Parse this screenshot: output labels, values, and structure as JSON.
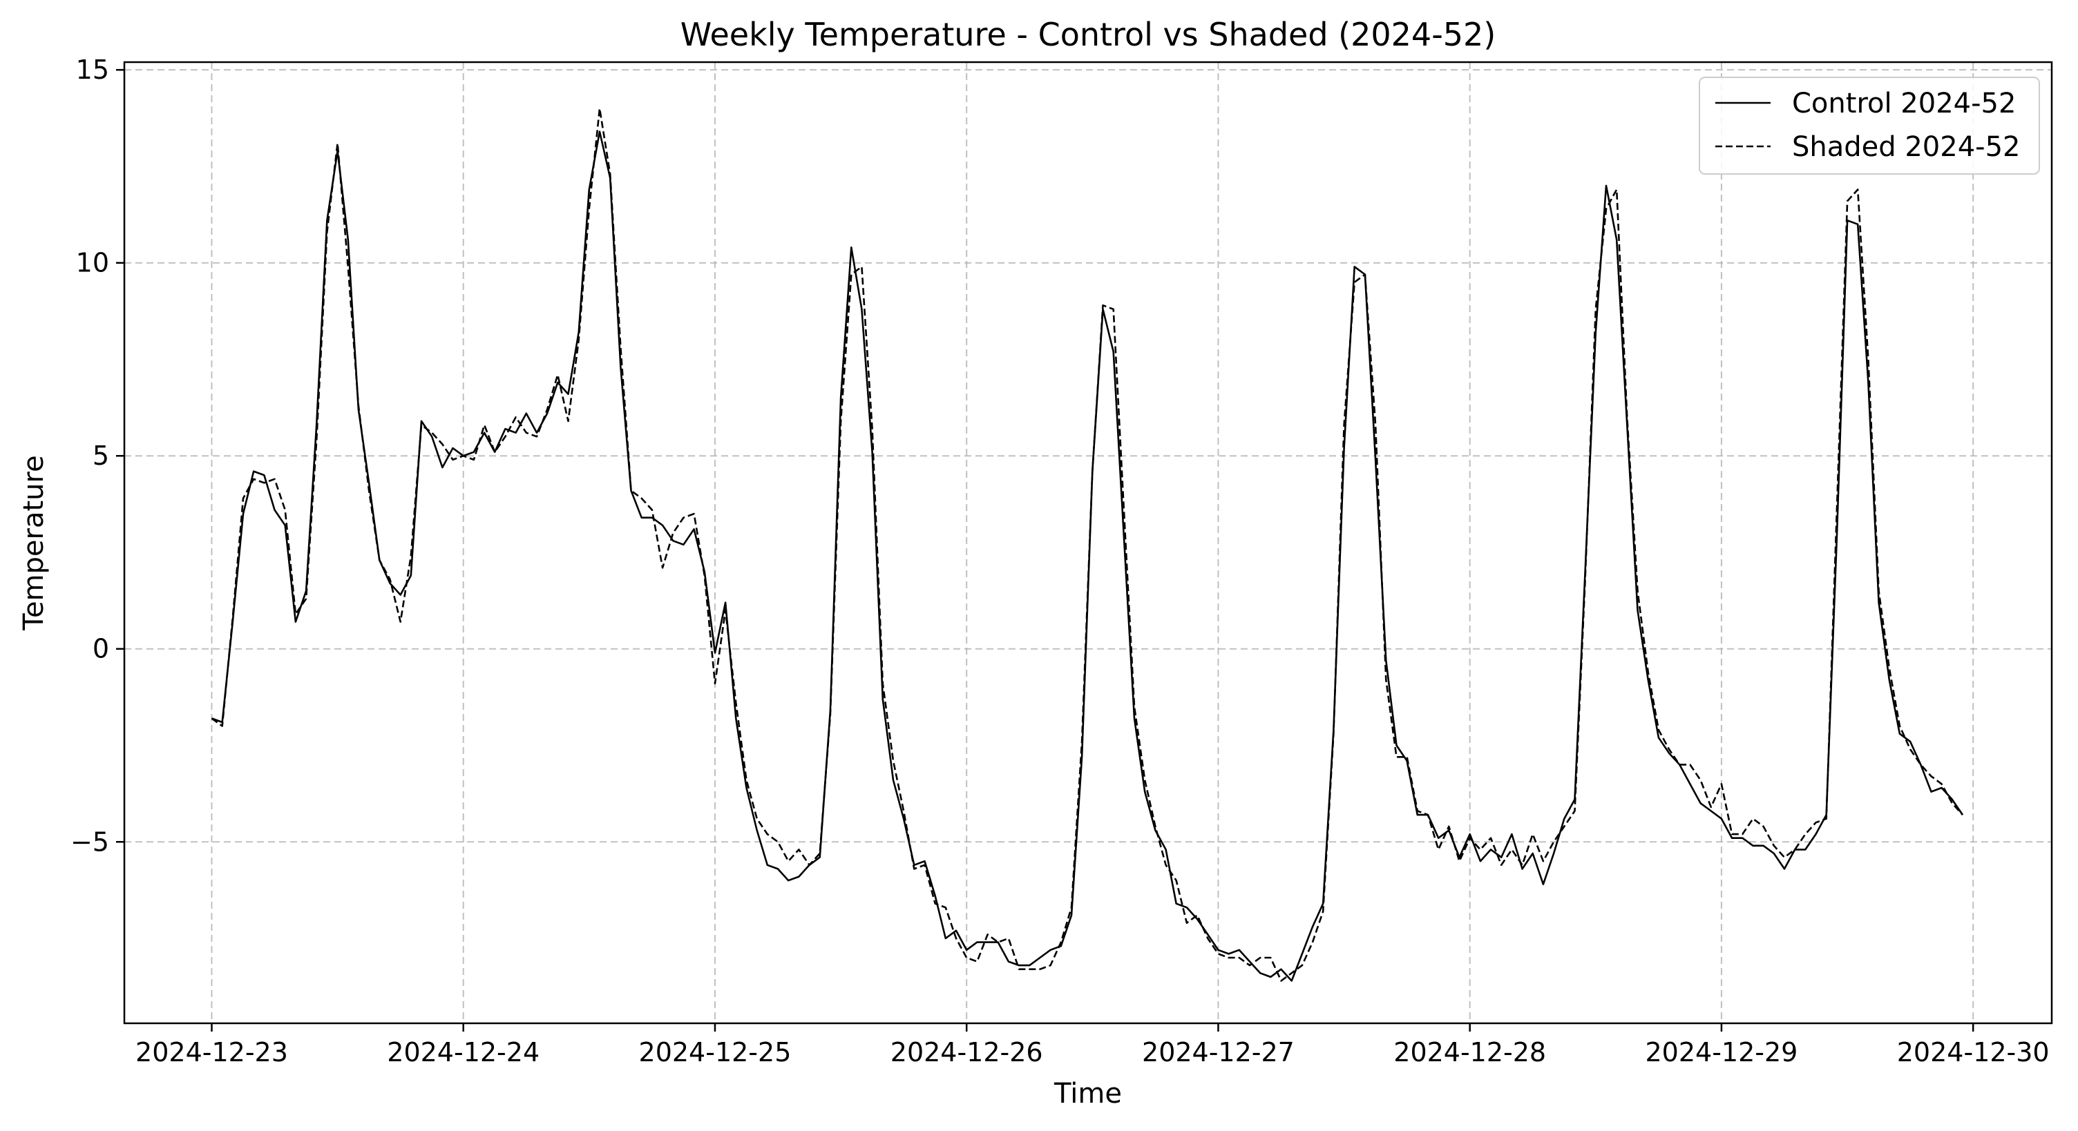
{
  "chart_data": {
    "type": "line",
    "title": "Weekly Temperature - Control vs Shaded (2024-52)",
    "xlabel": "Time",
    "ylabel": "Temperature",
    "x_start": "2024-12-23 00:00",
    "x_step_hours": 1,
    "x_ticks": [
      "2024-12-23",
      "2024-12-24",
      "2024-12-25",
      "2024-12-26",
      "2024-12-27",
      "2024-12-28",
      "2024-12-29",
      "2024-12-30"
    ],
    "y_ticks": [
      -5,
      0,
      5,
      10,
      15
    ],
    "y_tick_labels": [
      "−5",
      "0",
      "5",
      "10",
      "15"
    ],
    "xlim": [
      "2024-12-22 15:40",
      "2024-12-30 07:30"
    ],
    "ylim": [
      -9.7,
      15.2
    ],
    "grid": true,
    "grid_style": "dashed",
    "legend_position": "top-right",
    "series": [
      {
        "name": "Control 2024-52",
        "style": "solid",
        "color": "#000000",
        "values": [
          -1.8,
          -1.9,
          0.7,
          3.5,
          4.6,
          4.5,
          3.6,
          3.2,
          0.7,
          1.5,
          5.8,
          11.1,
          12.9,
          10.6,
          6.2,
          4.3,
          2.3,
          1.7,
          1.4,
          1.9,
          5.9,
          5.5,
          4.7,
          5.2,
          5.0,
          5.1,
          5.6,
          5.1,
          5.7,
          5.6,
          6.1,
          5.6,
          6.1,
          6.9,
          6.6,
          8.2,
          11.9,
          13.4,
          12.2,
          7.3,
          4.1,
          3.4,
          3.4,
          3.2,
          2.8,
          2.7,
          3.1,
          2.0,
          -0.1,
          1.2,
          -1.8,
          -3.6,
          -4.7,
          -5.6,
          -5.7,
          -6.0,
          -5.9,
          -5.6,
          -5.4,
          -1.6,
          6.5,
          10.4,
          8.8,
          5.1,
          -1.3,
          -3.4,
          -4.4,
          -5.6,
          -5.5,
          -6.4,
          -7.5,
          -7.3,
          -7.8,
          -7.6,
          -7.6,
          -7.6,
          -8.1,
          -8.2,
          -8.2,
          -8.0,
          -7.8,
          -7.7,
          -6.9,
          -2.8,
          4.6,
          8.8,
          7.7,
          2.9,
          -1.8,
          -3.7,
          -4.7,
          -5.2,
          -6.6,
          -6.7,
          -7.0,
          -7.4,
          -7.8,
          -7.9,
          -7.8,
          -8.1,
          -8.4,
          -8.5,
          -8.3,
          -8.6,
          -7.9,
          -7.2,
          -6.6,
          -2.1,
          5.2,
          9.9,
          9.7,
          4.9,
          -0.3,
          -2.5,
          -2.9,
          -4.3,
          -4.3,
          -4.9,
          -4.7,
          -5.4,
          -4.8,
          -5.5,
          -5.2,
          -5.4,
          -4.8,
          -5.7,
          -5.3,
          -6.1,
          -5.3,
          -4.4,
          -3.9,
          2.0,
          8.2,
          12.0,
          10.6,
          5.8,
          1.0,
          -0.8,
          -2.3,
          -2.7,
          -3.0,
          -3.5,
          -4.0,
          -4.2,
          -4.4,
          -4.9,
          -4.9,
          -5.1,
          -5.1,
          -5.3,
          -5.7,
          -5.2,
          -5.2,
          -4.8,
          -4.3,
          2.9,
          11.1,
          11.0,
          6.9,
          1.2,
          -0.8,
          -2.2,
          -2.4,
          -3.0,
          -3.7,
          -3.6,
          -3.9,
          -4.3
        ]
      },
      {
        "name": "Shaded 2024-52",
        "style": "dashed",
        "color": "#000000",
        "values": [
          -1.8,
          -2.0,
          0.8,
          3.9,
          4.4,
          4.3,
          4.4,
          3.6,
          0.9,
          1.3,
          5.4,
          10.8,
          13.1,
          9.9,
          6.3,
          4.1,
          2.3,
          1.8,
          0.7,
          2.4,
          5.8,
          5.6,
          5.3,
          4.9,
          5.0,
          4.9,
          5.8,
          5.1,
          5.5,
          6.0,
          5.6,
          5.5,
          6.2,
          7.1,
          5.9,
          8.0,
          11.4,
          14.0,
          12.3,
          7.8,
          4.1,
          3.9,
          3.6,
          2.1,
          3.0,
          3.4,
          3.5,
          1.9,
          -0.9,
          1.0,
          -1.4,
          -3.4,
          -4.4,
          -4.8,
          -5.0,
          -5.5,
          -5.2,
          -5.6,
          -5.3,
          -1.7,
          5.9,
          9.7,
          9.9,
          5.7,
          -0.9,
          -2.9,
          -4.2,
          -5.7,
          -5.6,
          -6.6,
          -6.7,
          -7.5,
          -8.0,
          -8.1,
          -7.4,
          -7.6,
          -7.5,
          -8.3,
          -8.3,
          -8.3,
          -8.2,
          -7.6,
          -6.7,
          -2.4,
          4.6,
          8.9,
          8.8,
          3.6,
          -1.5,
          -3.4,
          -4.6,
          -5.6,
          -6.0,
          -7.1,
          -6.9,
          -7.5,
          -7.9,
          -8.0,
          -8.0,
          -8.2,
          -8.0,
          -8.0,
          -8.6,
          -8.4,
          -8.2,
          -7.6,
          -6.8,
          -2.2,
          5.8,
          9.5,
          9.7,
          5.8,
          -0.8,
          -2.8,
          -2.8,
          -4.2,
          -4.3,
          -5.2,
          -4.6,
          -5.5,
          -4.9,
          -5.2,
          -4.9,
          -5.6,
          -5.2,
          -5.6,
          -4.8,
          -5.5,
          -5.0,
          -4.6,
          -4.2,
          1.8,
          8.8,
          11.4,
          11.9,
          6.0,
          1.5,
          -0.6,
          -2.1,
          -2.6,
          -3.0,
          -3.0,
          -3.4,
          -4.1,
          -3.5,
          -4.8,
          -4.8,
          -4.4,
          -4.6,
          -5.1,
          -5.4,
          -5.2,
          -4.8,
          -4.5,
          -4.4,
          3.6,
          11.6,
          11.9,
          7.5,
          1.5,
          -0.5,
          -2.0,
          -2.6,
          -3.0,
          -3.3,
          -3.5,
          -4.0,
          -4.3
        ]
      }
    ]
  }
}
